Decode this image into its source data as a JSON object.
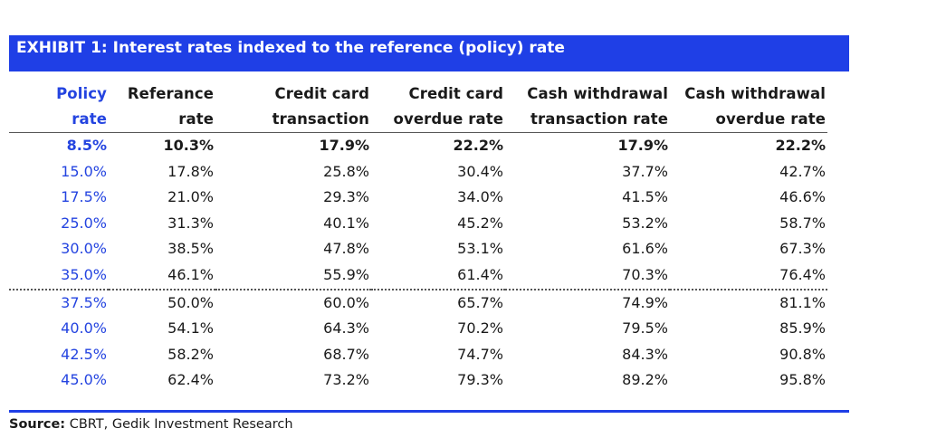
{
  "title": "EXHIBIT 1: Interest rates indexed to the reference (policy) rate",
  "source": {
    "label": "Source:",
    "text": "CBRT, Gedik Investment Research"
  },
  "colors": {
    "banner": "#1f3fe6",
    "policy_text": "#2444e0"
  },
  "chart_data": {
    "type": "table",
    "title": "EXHIBIT 1: Interest rates indexed to the reference (policy) rate",
    "columns": [
      [
        "Policy",
        "rate"
      ],
      [
        "Referance",
        "rate"
      ],
      [
        "Credit card",
        "transaction"
      ],
      [
        "Credit card",
        "overdue rate"
      ],
      [
        "Cash withdrawal",
        "transaction rate"
      ],
      [
        "Cash withdrawal",
        "overdue rate"
      ]
    ],
    "rows": [
      [
        "8.5%",
        "10.3%",
        "17.9%",
        "22.2%",
        "17.9%",
        "22.2%"
      ],
      [
        "15.0%",
        "17.8%",
        "25.8%",
        "30.4%",
        "37.7%",
        "42.7%"
      ],
      [
        "17.5%",
        "21.0%",
        "29.3%",
        "34.0%",
        "41.5%",
        "46.6%"
      ],
      [
        "25.0%",
        "31.3%",
        "40.1%",
        "45.2%",
        "53.2%",
        "58.7%"
      ],
      [
        "30.0%",
        "38.5%",
        "47.8%",
        "53.1%",
        "61.6%",
        "67.3%"
      ],
      [
        "35.0%",
        "46.1%",
        "55.9%",
        "61.4%",
        "70.3%",
        "76.4%"
      ],
      [
        "37.5%",
        "50.0%",
        "60.0%",
        "65.7%",
        "74.9%",
        "81.1%"
      ],
      [
        "40.0%",
        "54.1%",
        "64.3%",
        "70.2%",
        "79.5%",
        "85.9%"
      ],
      [
        "42.5%",
        "58.2%",
        "68.7%",
        "74.7%",
        "84.3%",
        "90.8%"
      ],
      [
        "45.0%",
        "62.4%",
        "73.2%",
        "79.3%",
        "89.2%",
        "95.8%"
      ]
    ],
    "bold_rows": [
      0
    ],
    "dotted_separator_after_row": 5
  }
}
